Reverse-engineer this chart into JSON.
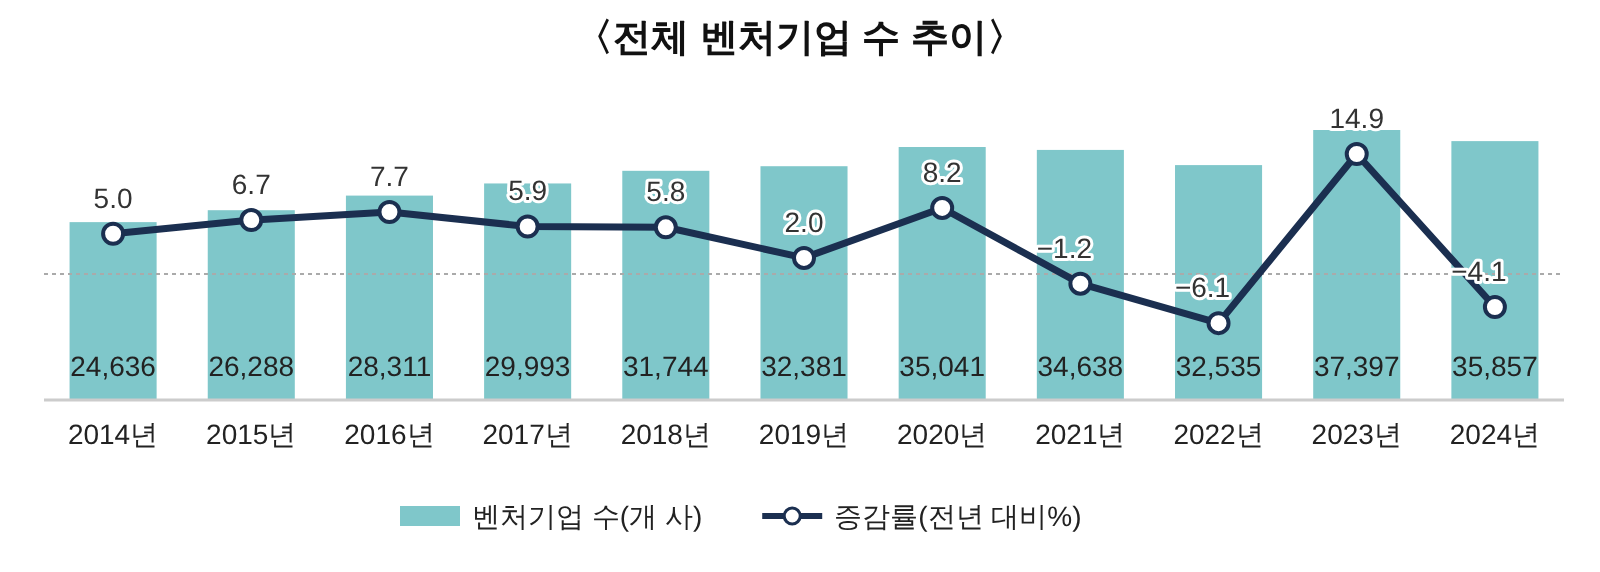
{
  "chart_data": {
    "type": "bar",
    "title": "〈전체 벤처기업 수 추이〉",
    "categories": [
      "2014년",
      "2015년",
      "2016년",
      "2017년",
      "2018년",
      "2019년",
      "2020년",
      "2021년",
      "2022년",
      "2023년",
      "2024년"
    ],
    "series": [
      {
        "name": "벤처기업 수(개 사)",
        "color": "#7fc7ca",
        "values": [
          24636,
          26288,
          28311,
          29993,
          31744,
          32381,
          35041,
          34638,
          32535,
          37397,
          35857
        ],
        "value_labels": [
          "24,636",
          "26,288",
          "28,311",
          "29,993",
          "31,744",
          "32,381",
          "35,041",
          "34,638",
          "32,535",
          "37,397",
          "35,857"
        ]
      },
      {
        "name": "증감률(전년 대비%)",
        "type": "line",
        "axis": "y2",
        "color": "#1b2f50",
        "values": [
          5.0,
          6.7,
          7.7,
          5.9,
          5.8,
          2.0,
          8.2,
          -1.2,
          -6.1,
          14.9,
          -4.1
        ],
        "value_labels": [
          "5.0",
          "6.7",
          "7.7",
          "5.9",
          "5.8",
          "2.0",
          "8.2",
          "−1.2",
          "−6.1",
          "14.9",
          "−4.1"
        ]
      }
    ],
    "ref_lines": [
      {
        "axis": "y2",
        "value": 0,
        "color": "#aaaaaa",
        "line_style": "dotted"
      }
    ],
    "legend": "bottom",
    "marker": "circle"
  }
}
